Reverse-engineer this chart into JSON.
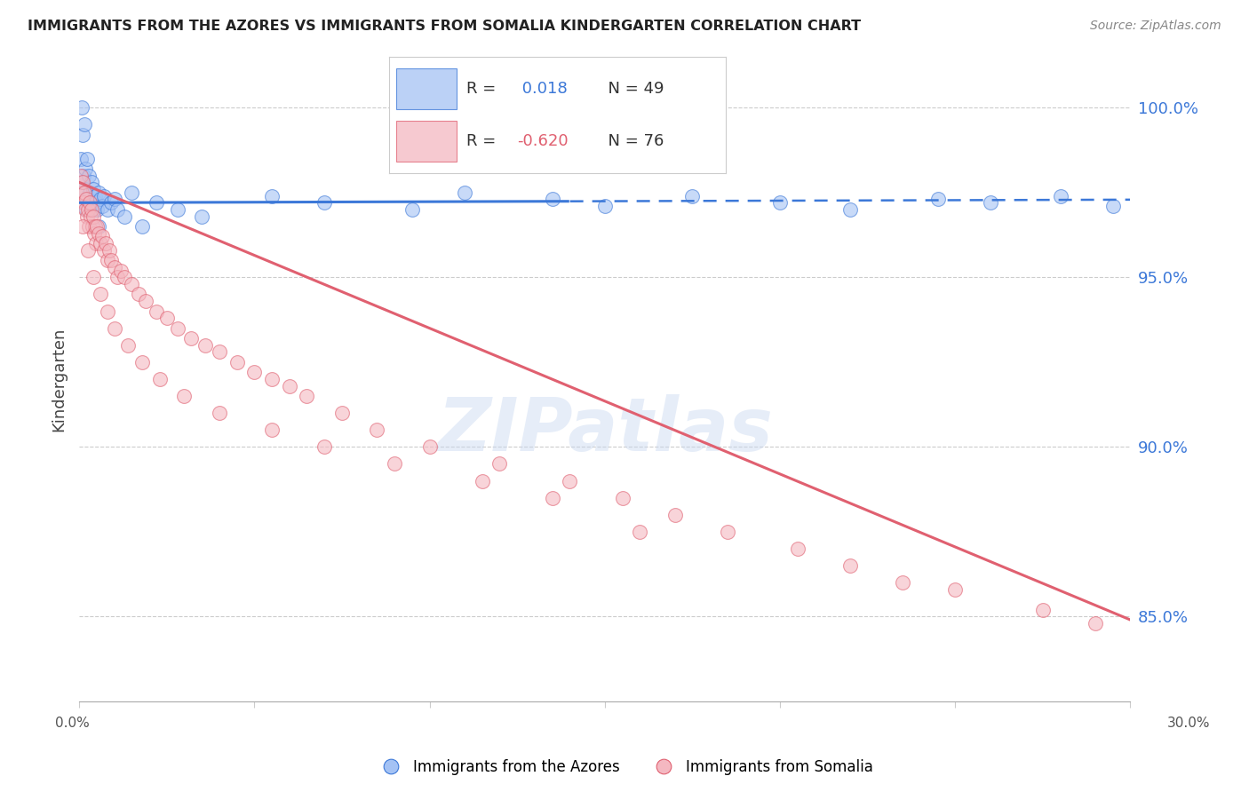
{
  "title": "IMMIGRANTS FROM THE AZORES VS IMMIGRANTS FROM SOMALIA KINDERGARTEN CORRELATION CHART",
  "source": "Source: ZipAtlas.com",
  "ylabel": "Kindergarten",
  "right_yticks": [
    100.0,
    95.0,
    90.0,
    85.0
  ],
  "xlim": [
    0.0,
    30.0
  ],
  "ylim": [
    82.5,
    101.5
  ],
  "legend_azores_R": "0.018",
  "legend_azores_N": "49",
  "legend_somalia_R": "-0.620",
  "legend_somalia_N": "76",
  "blue_color": "#a4c2f4",
  "pink_color": "#f4b8c1",
  "blue_line_color": "#3c78d8",
  "pink_line_color": "#e06070",
  "background_color": "#ffffff",
  "watermark": "ZIPatlas",
  "azores_x": [
    0.05,
    0.08,
    0.1,
    0.12,
    0.15,
    0.18,
    0.2,
    0.22,
    0.25,
    0.28,
    0.3,
    0.32,
    0.35,
    0.38,
    0.4,
    0.42,
    0.45,
    0.48,
    0.5,
    0.55,
    0.6,
    0.65,
    0.7,
    0.8,
    0.9,
    1.0,
    1.1,
    1.3,
    1.5,
    1.8,
    2.2,
    2.8,
    3.5,
    5.5,
    7.0,
    9.5,
    11.0,
    13.5,
    15.0,
    17.5,
    20.0,
    22.0,
    24.5,
    26.0,
    28.0,
    29.5,
    0.07,
    0.14,
    0.55
  ],
  "azores_y": [
    98.5,
    97.8,
    99.2,
    98.0,
    97.5,
    98.2,
    97.0,
    98.5,
    97.3,
    98.0,
    97.5,
    97.0,
    97.8,
    97.2,
    97.6,
    97.0,
    97.4,
    97.2,
    97.0,
    97.5,
    97.3,
    97.1,
    97.4,
    97.0,
    97.2,
    97.3,
    97.0,
    96.8,
    97.5,
    96.5,
    97.2,
    97.0,
    96.8,
    97.4,
    97.2,
    97.0,
    97.5,
    97.3,
    97.1,
    97.4,
    97.2,
    97.0,
    97.3,
    97.2,
    97.4,
    97.1,
    100.0,
    99.5,
    96.5
  ],
  "somalia_x": [
    0.05,
    0.08,
    0.1,
    0.12,
    0.15,
    0.18,
    0.2,
    0.22,
    0.25,
    0.28,
    0.3,
    0.32,
    0.35,
    0.38,
    0.4,
    0.42,
    0.45,
    0.48,
    0.5,
    0.55,
    0.6,
    0.65,
    0.7,
    0.75,
    0.8,
    0.85,
    0.9,
    1.0,
    1.1,
    1.2,
    1.3,
    1.5,
    1.7,
    1.9,
    2.2,
    2.5,
    2.8,
    3.2,
    3.6,
    4.0,
    4.5,
    5.0,
    5.5,
    6.0,
    6.5,
    7.5,
    8.5,
    10.0,
    12.0,
    14.0,
    15.5,
    17.0,
    18.5,
    20.5,
    22.0,
    23.5,
    25.0,
    27.5,
    29.0,
    0.1,
    0.25,
    0.4,
    0.6,
    0.8,
    1.0,
    1.4,
    1.8,
    2.3,
    3.0,
    4.0,
    5.5,
    7.0,
    9.0,
    11.5,
    13.5,
    16.0
  ],
  "somalia_y": [
    98.0,
    97.5,
    97.8,
    97.2,
    97.5,
    97.0,
    97.3,
    96.8,
    97.0,
    96.5,
    97.2,
    96.8,
    97.0,
    96.5,
    96.8,
    96.3,
    96.5,
    96.0,
    96.5,
    96.3,
    96.0,
    96.2,
    95.8,
    96.0,
    95.5,
    95.8,
    95.5,
    95.3,
    95.0,
    95.2,
    95.0,
    94.8,
    94.5,
    94.3,
    94.0,
    93.8,
    93.5,
    93.2,
    93.0,
    92.8,
    92.5,
    92.2,
    92.0,
    91.8,
    91.5,
    91.0,
    90.5,
    90.0,
    89.5,
    89.0,
    88.5,
    88.0,
    87.5,
    87.0,
    86.5,
    86.0,
    85.8,
    85.2,
    84.8,
    96.5,
    95.8,
    95.0,
    94.5,
    94.0,
    93.5,
    93.0,
    92.5,
    92.0,
    91.5,
    91.0,
    90.5,
    90.0,
    89.5,
    89.0,
    88.5,
    87.5
  ],
  "az_line_solid_end": 14.0,
  "az_line_y_intercept": 97.2,
  "az_line_slope": 0.003,
  "so_line_y_intercept": 97.8,
  "so_line_slope": -0.43
}
